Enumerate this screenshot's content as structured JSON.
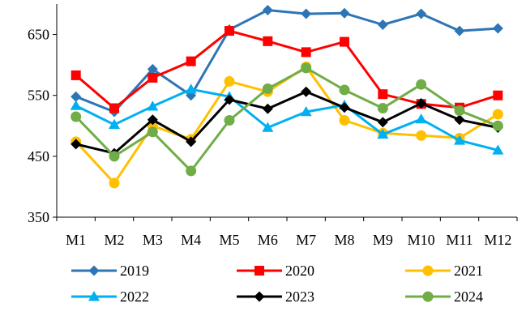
{
  "chart_data": {
    "type": "line",
    "title": "",
    "xlabel": "",
    "ylabel": "",
    "categories": [
      "M1",
      "M2",
      "M3",
      "M4",
      "M5",
      "M6",
      "M7",
      "M8",
      "M9",
      "M10",
      "M11",
      "M12"
    ],
    "ylim": [
      350,
      700
    ],
    "yticks": [
      350,
      450,
      550,
      650
    ],
    "grid": false,
    "legend_position": "bottom",
    "series": [
      {
        "name": "2019",
        "color": "#2E75B6",
        "marker": "diamond",
        "values": [
          548,
          523,
          593,
          550,
          658,
          690,
          684,
          685,
          666,
          684,
          656,
          660
        ]
      },
      {
        "name": "2020",
        "color": "#FF0000",
        "marker": "square",
        "values": [
          583,
          529,
          579,
          606,
          656,
          639,
          621,
          638,
          552,
          536,
          530,
          550
        ]
      },
      {
        "name": "2021",
        "color": "#FFC000",
        "marker": "circle",
        "values": [
          474,
          406,
          500,
          478,
          573,
          556,
          597,
          509,
          488,
          484,
          480,
          519
        ]
      },
      {
        "name": "2022",
        "color": "#00B0F0",
        "marker": "triangle",
        "values": [
          533,
          502,
          532,
          560,
          548,
          497,
          523,
          534,
          486,
          511,
          476,
          460
        ]
      },
      {
        "name": "2023",
        "color": "#000000",
        "marker": "diamond",
        "values": [
          470,
          455,
          510,
          474,
          543,
          528,
          556,
          530,
          506,
          537,
          510,
          497
        ]
      },
      {
        "name": "2024",
        "color": "#70AD47",
        "marker": "circle",
        "values": [
          515,
          450,
          490,
          426,
          509,
          561,
          595,
          559,
          529,
          568,
          525,
          500
        ]
      }
    ]
  }
}
